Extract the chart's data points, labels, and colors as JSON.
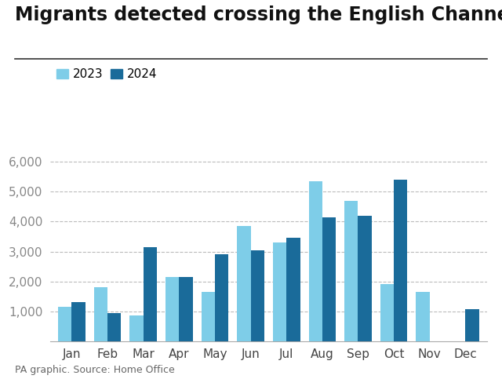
{
  "title": "Migrants detected crossing the English Channel",
  "months": [
    "Jan",
    "Feb",
    "Mar",
    "Apr",
    "May",
    "Jun",
    "Jul",
    "Aug",
    "Sep",
    "Oct",
    "Nov",
    "Dec"
  ],
  "values_2023": [
    1150,
    1800,
    850,
    2150,
    1650,
    3850,
    3300,
    5350,
    4700,
    1900,
    1650,
    null
  ],
  "values_2024": [
    1300,
    950,
    3150,
    2150,
    2900,
    3050,
    3450,
    4150,
    4200,
    5400,
    null,
    1075
  ],
  "color_2023": "#7ecde8",
  "color_2024": "#1a6b9a",
  "ylabel_ticks": [
    1000,
    2000,
    3000,
    4000,
    5000,
    6000
  ],
  "ylim": [
    0,
    6600
  ],
  "source": "PA graphic. Source: Home Office",
  "background_color": "#ffffff",
  "bar_width": 0.38,
  "title_fontsize": 17,
  "legend_fontsize": 11,
  "tick_fontsize": 11,
  "source_fontsize": 9
}
